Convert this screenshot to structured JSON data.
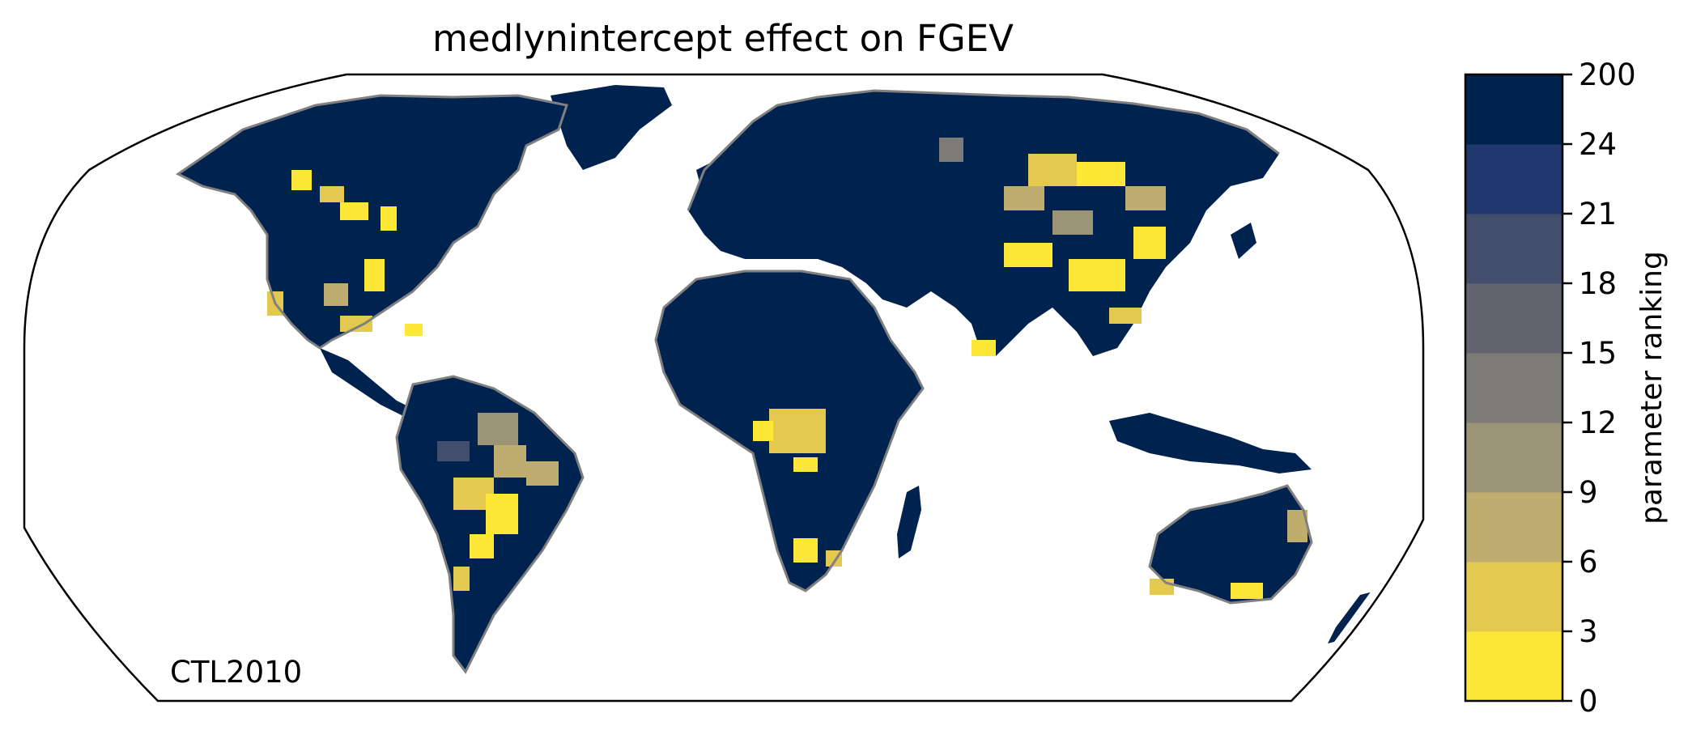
{
  "title": "medlynintercept effect on FGEV",
  "corner_label": "CTL2010",
  "colorbar": {
    "label": "parameter ranking",
    "ticks": [
      "0",
      "3",
      "6",
      "9",
      "12",
      "15",
      "18",
      "21",
      "24",
      "200"
    ],
    "bins": [
      {
        "from": 0,
        "to": 3,
        "color": "#fde737"
      },
      {
        "from": 3,
        "to": 6,
        "color": "#e3c94f"
      },
      {
        "from": 6,
        "to": 9,
        "color": "#bfad6f"
      },
      {
        "from": 9,
        "to": 12,
        "color": "#9b9477"
      },
      {
        "from": 12,
        "to": 15,
        "color": "#7c7b78"
      },
      {
        "from": 15,
        "to": 18,
        "color": "#62656f"
      },
      {
        "from": 18,
        "to": 21,
        "color": "#434e6c"
      },
      {
        "from": 21,
        "to": 24,
        "color": "#21386e"
      },
      {
        "from": 24,
        "to": 200,
        "color": "#00224e"
      }
    ]
  },
  "map": {
    "projection": "robinson",
    "coastline_color": "#808080",
    "land_color": "#00224e",
    "ocean_color": "#ffffff"
  }
}
